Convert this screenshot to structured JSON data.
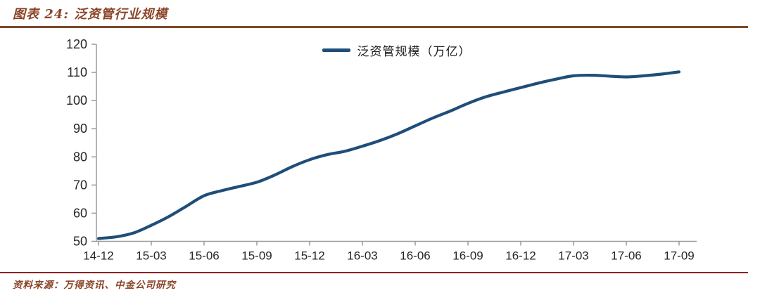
{
  "header": {
    "title": "图表 24: 泛资管行业规模"
  },
  "legend": {
    "label": "泛资管规模（万亿）"
  },
  "footer": {
    "source": "资料来源：万得资讯、中金公司研究"
  },
  "colors": {
    "line": "#1F4E79",
    "title_text": "#8B4428",
    "top_rule": "#7B4A2B",
    "bottom_rule": "#8B2323",
    "axis": "#9B9B9B",
    "tick_label": "#262626"
  },
  "chart_data": {
    "type": "line",
    "title": "图表 24: 泛资管行业规模",
    "legend": "泛资管规模（万亿）",
    "legend_position": "top-center",
    "grid": false,
    "ylabel": "",
    "xlabel": "",
    "ylim": [
      50,
      120
    ],
    "ytick_step": 10,
    "y_tick_labels": [
      "50",
      "60",
      "70",
      "80",
      "90",
      "100",
      "110",
      "120"
    ],
    "x_tick_labels": [
      "14-12",
      "15-03",
      "15-06",
      "15-09",
      "15-12",
      "16-03",
      "16-06",
      "16-09",
      "16-12",
      "17-03",
      "17-06",
      "17-09"
    ],
    "x": [
      "14-12",
      "15-01",
      "15-02",
      "15-03",
      "15-04",
      "15-05",
      "15-06",
      "15-07",
      "15-08",
      "15-09",
      "15-10",
      "15-11",
      "15-12",
      "16-01",
      "16-02",
      "16-03",
      "16-04",
      "16-05",
      "16-06",
      "16-07",
      "16-08",
      "16-09",
      "16-10",
      "16-11",
      "16-12",
      "17-01",
      "17-02",
      "17-03",
      "17-04",
      "17-05",
      "17-06",
      "17-07",
      "17-08",
      "17-09"
    ],
    "series": [
      {
        "name": "泛资管规模（万亿）",
        "values": [
          51.0,
          51.6,
          53.0,
          55.7,
          58.8,
          62.5,
          66.2,
          68.0,
          69.5,
          71.0,
          73.5,
          76.5,
          79.0,
          80.8,
          82.0,
          83.8,
          85.8,
          88.2,
          91.0,
          93.8,
          96.3,
          99.0,
          101.3,
          103.0,
          104.6,
          106.2,
          107.6,
          108.8,
          109.0,
          108.7,
          108.4,
          108.8,
          109.4,
          110.2
        ]
      }
    ]
  }
}
